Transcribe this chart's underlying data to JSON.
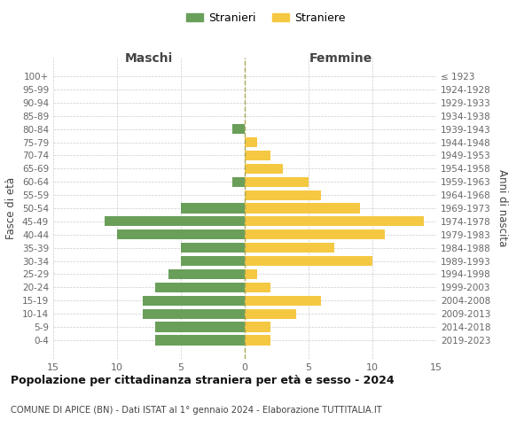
{
  "age_groups": [
    "100+",
    "95-99",
    "90-94",
    "85-89",
    "80-84",
    "75-79",
    "70-74",
    "65-69",
    "60-64",
    "55-59",
    "50-54",
    "45-49",
    "40-44",
    "35-39",
    "30-34",
    "25-29",
    "20-24",
    "15-19",
    "10-14",
    "5-9",
    "0-4"
  ],
  "birth_years": [
    "≤ 1923",
    "1924-1928",
    "1929-1933",
    "1934-1938",
    "1939-1943",
    "1944-1948",
    "1949-1953",
    "1954-1958",
    "1959-1963",
    "1964-1968",
    "1969-1973",
    "1974-1978",
    "1979-1983",
    "1984-1988",
    "1989-1993",
    "1994-1998",
    "1999-2003",
    "2004-2008",
    "2009-2013",
    "2014-2018",
    "2019-2023"
  ],
  "males": [
    0,
    0,
    0,
    0,
    1,
    0,
    0,
    0,
    1,
    0,
    5,
    11,
    10,
    5,
    5,
    6,
    7,
    8,
    8,
    7,
    7
  ],
  "females": [
    0,
    0,
    0,
    0,
    0,
    1,
    2,
    3,
    5,
    6,
    9,
    14,
    11,
    7,
    10,
    1,
    2,
    6,
    4,
    2,
    2
  ],
  "male_color": "#6a9f5a",
  "female_color": "#f5c842",
  "background_color": "#ffffff",
  "grid_color": "#cccccc",
  "title": "Popolazione per cittadinanza straniera per età e sesso - 2024",
  "subtitle": "COMUNE DI APICE (BN) - Dati ISTAT al 1° gennaio 2024 - Elaborazione TUTTITALIA.IT",
  "xlabel_left": "Maschi",
  "xlabel_right": "Femmine",
  "ylabel_left": "Fasce di età",
  "ylabel_right": "Anni di nascita",
  "legend_males": "Stranieri",
  "legend_females": "Straniere",
  "xlim": 15,
  "tick_color": "#666666",
  "label_color": "#444444"
}
